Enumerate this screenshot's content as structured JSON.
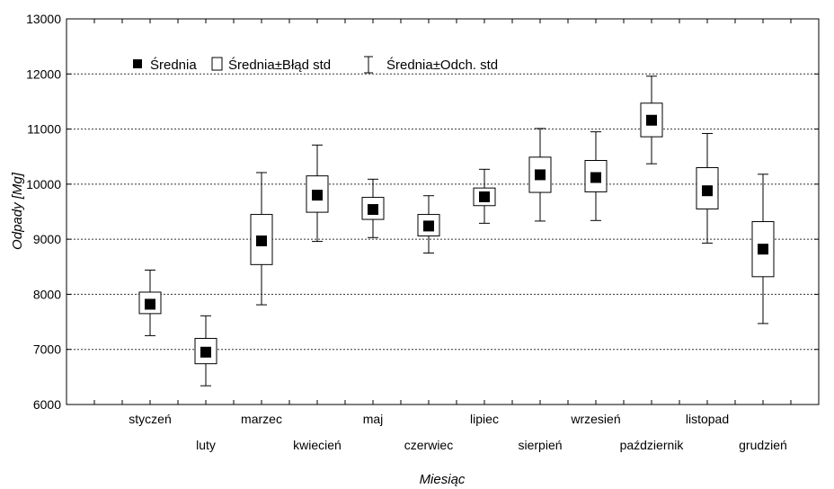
{
  "chart_data": {
    "type": "box",
    "xlabel": "Miesiąc",
    "ylabel": "Odpady [Mg]",
    "ylim": [
      6000,
      13000
    ],
    "y_ticks": [
      6000,
      7000,
      8000,
      9000,
      10000,
      11000,
      12000,
      13000
    ],
    "y_tick_labels": [
      "6000",
      "7000",
      "8000",
      "9000",
      "10000",
      "11000",
      "12000",
      "13000"
    ],
    "grid": true,
    "legend_position": "top-left",
    "legend": [
      {
        "key": "mean",
        "label": "Średnia"
      },
      {
        "key": "se",
        "label": "Średnia±Błąd std"
      },
      {
        "key": "sd",
        "label": "Średnia±Odch. std"
      }
    ],
    "categories": [
      "styczeń",
      "luty",
      "marzec",
      "kwiecień",
      "maj",
      "czerwiec",
      "lipiec",
      "sierpień",
      "wrzesień",
      "październik",
      "listopad",
      "grudzień"
    ],
    "mean": [
      7820,
      6950,
      8970,
      9800,
      9540,
      9240,
      9770,
      10170,
      10120,
      11160,
      9880,
      8820
    ],
    "se_low": [
      7650,
      6740,
      8540,
      9490,
      9360,
      9060,
      9610,
      9850,
      9860,
      10860,
      9550,
      8320
    ],
    "se_high": [
      8040,
      7200,
      9450,
      10150,
      9760,
      9450,
      9930,
      10490,
      10430,
      11470,
      10300,
      9320
    ],
    "sd_low": [
      7250,
      6340,
      7810,
      8960,
      9030,
      8750,
      9290,
      9330,
      9340,
      10370,
      8930,
      7470
    ],
    "sd_high": [
      8440,
      7610,
      10210,
      10710,
      10090,
      9790,
      10270,
      11010,
      10950,
      11960,
      10920,
      10180
    ]
  }
}
